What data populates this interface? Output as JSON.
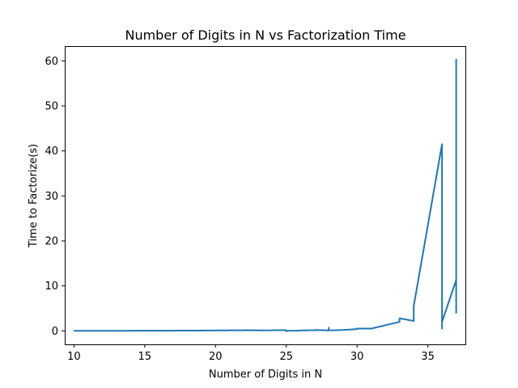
{
  "chart_data": {
    "type": "line",
    "title": "Number of Digits in N vs Factorization Time",
    "xlabel": "Number of Digits in N",
    "ylabel": "Time to Factorize(s)",
    "xlim": [
      9.35,
      37.65
    ],
    "ylim": [
      -3.0,
      63.3
    ],
    "xticks": [
      10,
      15,
      20,
      25,
      30,
      35
    ],
    "yticks": [
      0,
      10,
      20,
      30,
      40,
      50,
      60
    ],
    "grid": false,
    "legend": "none",
    "color": "#1f77b4",
    "series": [
      {
        "x": [
          10,
          10,
          11,
          11,
          12,
          12,
          13,
          13,
          14,
          14,
          15,
          15,
          16,
          16,
          17,
          17,
          18,
          18,
          19,
          19,
          20,
          20,
          21,
          21,
          22,
          22,
          23,
          23,
          24,
          24,
          25,
          25,
          25,
          26,
          26,
          27,
          27,
          28,
          28,
          28,
          29,
          30,
          30,
          31,
          33,
          33,
          34,
          34,
          36,
          36,
          36,
          37,
          37,
          37,
          37,
          37
        ],
        "y": [
          0.01,
          0.02,
          0.01,
          0.02,
          0.01,
          0.02,
          0.02,
          0.02,
          0.02,
          0.03,
          0.03,
          0.03,
          0.03,
          0.04,
          0.04,
          0.05,
          0.05,
          0.06,
          0.06,
          0.08,
          0.08,
          0.1,
          0.1,
          0.12,
          0.12,
          0.15,
          0.12,
          0.1,
          0.12,
          0.15,
          0.15,
          -0.1,
          0.0,
          0.05,
          0.1,
          0.15,
          0.2,
          0.1,
          0.7,
          0.1,
          0.2,
          0.4,
          0.5,
          0.5,
          2.0,
          2.8,
          2.2,
          5.5,
          41.5,
          0.5,
          2.0,
          11.3,
          4.0,
          60.3,
          4.0,
          11.3
        ]
      }
    ]
  }
}
